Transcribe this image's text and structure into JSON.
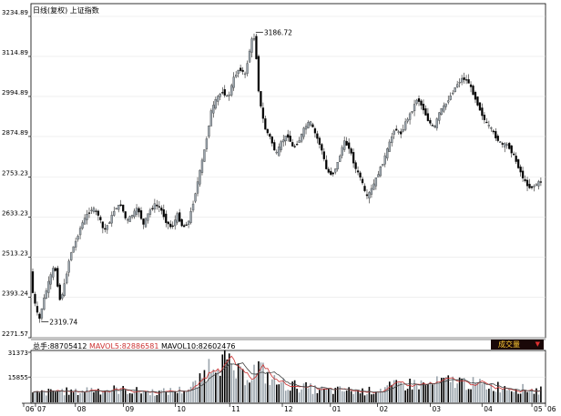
{
  "header": {
    "title": "日线(复权)  上证指数"
  },
  "volume_header": {
    "total_label": "总手:",
    "total_value": "88705412",
    "mavol5_label": "MAVOL5:",
    "mavol5_value": "82886581",
    "mavol10_label": "MAVOL10:",
    "mavol10_value": "82602476"
  },
  "volume_button": {
    "label": "成交量",
    "icon": "dropdown-arrow-icon"
  },
  "annotations": {
    "high_label": "3186.72",
    "low_label": "2319.74"
  },
  "colors": {
    "up_candle": "#9aa4ac",
    "down_candle": "#000000",
    "mavol5": "#cc3333",
    "mavol10": "#444444",
    "badge_bg": "#1a0808",
    "badge_text": "#ffcc33"
  },
  "chart_data": {
    "type": "candlestick",
    "price_axis": {
      "ticks": [
        "3234.89",
        "3114.89",
        "2994.89",
        "2874.89",
        "2753.23",
        "2633.23",
        "2513.23",
        "2393.24",
        "2271.57"
      ],
      "ylim": [
        2271.57,
        3234.89
      ]
    },
    "volume_axis": {
      "ticks": [
        "31373",
        "15855"
      ],
      "ylim": [
        0,
        31373
      ]
    },
    "x_axis": {
      "ticks": [
        "06",
        "07",
        "08",
        "09",
        "10",
        "11",
        "12",
        "01",
        "02",
        "03",
        "04",
        "05",
        "06"
      ]
    },
    "price_points": [
      [
        0,
        2470
      ],
      [
        2,
        2390
      ],
      [
        4,
        2360
      ],
      [
        6,
        2320
      ],
      [
        9,
        2380
      ],
      [
        13,
        2440
      ],
      [
        17,
        2490
      ],
      [
        21,
        2380
      ],
      [
        24,
        2430
      ],
      [
        28,
        2520
      ],
      [
        32,
        2560
      ],
      [
        36,
        2610
      ],
      [
        40,
        2640
      ],
      [
        44,
        2660
      ],
      [
        48,
        2640
      ],
      [
        52,
        2590
      ],
      [
        56,
        2620
      ],
      [
        60,
        2660
      ],
      [
        64,
        2670
      ],
      [
        68,
        2620
      ],
      [
        72,
        2640
      ],
      [
        76,
        2660
      ],
      [
        80,
        2610
      ],
      [
        84,
        2650
      ],
      [
        88,
        2670
      ],
      [
        92,
        2660
      ],
      [
        96,
        2620
      ],
      [
        100,
        2600
      ],
      [
        104,
        2640
      ],
      [
        108,
        2600
      ],
      [
        112,
        2620
      ],
      [
        116,
        2690
      ],
      [
        120,
        2770
      ],
      [
        124,
        2850
      ],
      [
        128,
        2950
      ],
      [
        132,
        2990
      ],
      [
        136,
        3010
      ],
      [
        140,
        2990
      ],
      [
        144,
        3050
      ],
      [
        148,
        3080
      ],
      [
        152,
        3060
      ],
      [
        156,
        3150
      ],
      [
        158,
        3186
      ],
      [
        160,
        3110
      ],
      [
        162,
        2990
      ],
      [
        166,
        2900
      ],
      [
        170,
        2870
      ],
      [
        174,
        2820
      ],
      [
        178,
        2860
      ],
      [
        182,
        2880
      ],
      [
        186,
        2840
      ],
      [
        190,
        2860
      ],
      [
        194,
        2900
      ],
      [
        198,
        2920
      ],
      [
        202,
        2880
      ],
      [
        206,
        2840
      ],
      [
        210,
        2770
      ],
      [
        214,
        2760
      ],
      [
        218,
        2800
      ],
      [
        222,
        2860
      ],
      [
        226,
        2840
      ],
      [
        230,
        2780
      ],
      [
        234,
        2750
      ],
      [
        238,
        2690
      ],
      [
        242,
        2720
      ],
      [
        246,
        2760
      ],
      [
        250,
        2800
      ],
      [
        254,
        2850
      ],
      [
        258,
        2900
      ],
      [
        262,
        2880
      ],
      [
        266,
        2920
      ],
      [
        270,
        2950
      ],
      [
        274,
        2990
      ],
      [
        278,
        2960
      ],
      [
        282,
        2920
      ],
      [
        286,
        2900
      ],
      [
        290,
        2950
      ],
      [
        294,
        2970
      ],
      [
        298,
        3000
      ],
      [
        302,
        3030
      ],
      [
        306,
        3050
      ],
      [
        310,
        3040
      ],
      [
        314,
        3000
      ],
      [
        318,
        2960
      ],
      [
        322,
        2920
      ],
      [
        326,
        2900
      ],
      [
        330,
        2870
      ],
      [
        334,
        2850
      ],
      [
        338,
        2850
      ],
      [
        342,
        2820
      ],
      [
        346,
        2780
      ],
      [
        350,
        2740
      ],
      [
        354,
        2720
      ],
      [
        358,
        2730
      ],
      [
        361,
        2740
      ]
    ],
    "volume_points": [
      [
        0,
        6000
      ],
      [
        10,
        7000
      ],
      [
        20,
        8000
      ],
      [
        30,
        7000
      ],
      [
        40,
        9000
      ],
      [
        50,
        8500
      ],
      [
        60,
        9000
      ],
      [
        70,
        8000
      ],
      [
        80,
        7500
      ],
      [
        90,
        7000
      ],
      [
        100,
        8000
      ],
      [
        110,
        9000
      ],
      [
        118,
        14000
      ],
      [
        124,
        24000
      ],
      [
        130,
        31373
      ],
      [
        136,
        28000
      ],
      [
        142,
        22000
      ],
      [
        148,
        18000
      ],
      [
        154,
        20000
      ],
      [
        160,
        24000
      ],
      [
        166,
        18000
      ],
      [
        172,
        14000
      ],
      [
        180,
        12000
      ],
      [
        190,
        11000
      ],
      [
        200,
        9000
      ],
      [
        210,
        8000
      ],
      [
        220,
        8500
      ],
      [
        230,
        7500
      ],
      [
        240,
        8000
      ],
      [
        250,
        10000
      ],
      [
        260,
        12000
      ],
      [
        270,
        13000
      ],
      [
        280,
        12000
      ],
      [
        290,
        14000
      ],
      [
        300,
        15000
      ],
      [
        310,
        13000
      ],
      [
        320,
        12000
      ],
      [
        330,
        11000
      ],
      [
        340,
        10000
      ],
      [
        350,
        9000
      ],
      [
        361,
        8000
      ]
    ]
  }
}
